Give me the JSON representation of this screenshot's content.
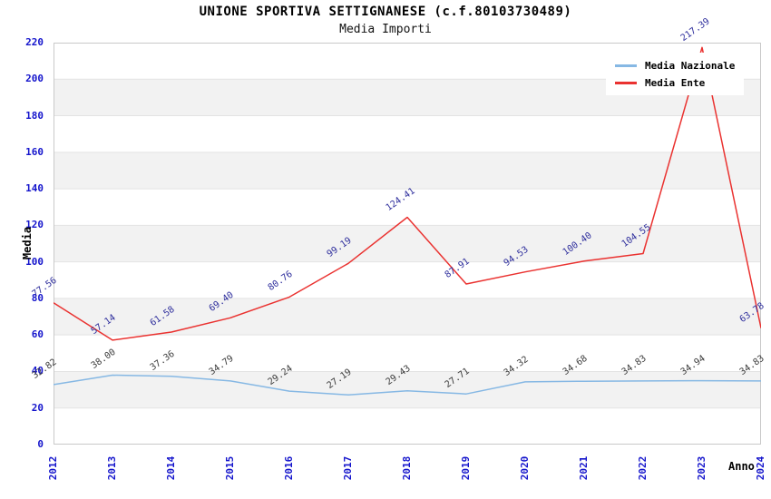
{
  "chart_data": {
    "type": "line",
    "title": "UNIONE SPORTIVA SETTIGNANESE (c.f.80103730489)",
    "subtitle": "Media Importi",
    "xlabel": "Anno",
    "ylabel": "Media",
    "categories": [
      "2012",
      "2013",
      "2014",
      "2015",
      "2016",
      "2017",
      "2018",
      "2019",
      "2020",
      "2021",
      "2022",
      "2023",
      "2024"
    ],
    "ylim": [
      0,
      220
    ],
    "yticks": [
      0,
      20,
      40,
      60,
      80,
      100,
      120,
      140,
      160,
      180,
      200,
      220
    ],
    "grid": "horizontal gridlines with alternating shaded bands every 20 units",
    "legend_position": "top-right",
    "series": [
      {
        "name": "Media Nazionale",
        "color": "#86b8e4",
        "label_color": "#3b3b3b",
        "values": [
          32.82,
          38.0,
          37.36,
          34.79,
          29.24,
          27.19,
          29.43,
          27.71,
          34.32,
          34.68,
          34.83,
          34.94,
          34.83
        ],
        "labels": [
          "32.82",
          "38.00",
          "37.36",
          "34.79",
          "29.24",
          "27.19",
          "29.43",
          "27.71",
          "34.32",
          "34.68",
          "34.83",
          "34.94",
          "34.83"
        ]
      },
      {
        "name": "Media Ente",
        "color": "#ea3230",
        "label_color": "#2d2d9c",
        "values": [
          77.56,
          57.14,
          61.58,
          69.4,
          80.76,
          99.19,
          124.41,
          87.91,
          94.53,
          100.4,
          104.55,
          217.39,
          63.78
        ],
        "labels": [
          "77.56",
          "57.14",
          "61.58",
          "69.40",
          "80.76",
          "99.19",
          "124.41",
          "87.91",
          "94.53",
          "100.40",
          "104.55",
          "217.39",
          "63.78"
        ]
      }
    ],
    "style_colors": {
      "tick_label": "#1414cc",
      "band_fill": "#f2f2f2",
      "gridline": "#e3e3e3",
      "plot_border": "#c9c9c9",
      "title_text": "#000000",
      "legend_background": "#ffffff"
    }
  }
}
